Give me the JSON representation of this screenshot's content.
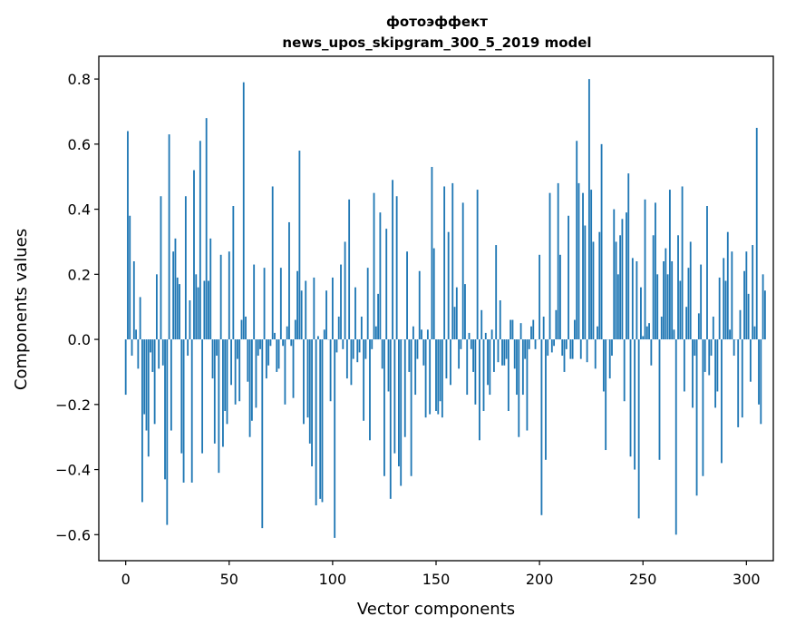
{
  "chart_data": {
    "type": "bar",
    "title_line1": "фотоэффект",
    "title_line2": "news_upos_skipgram_300_5_2019 model",
    "xlabel": "Vector components",
    "ylabel": "Components values",
    "xlim": [
      -13,
      313
    ],
    "ylim": [
      -0.68,
      0.87
    ],
    "x_ticks": [
      0,
      50,
      100,
      150,
      200,
      250,
      300
    ],
    "y_ticks": [
      -0.6,
      -0.4,
      -0.2,
      0.0,
      0.2,
      0.4,
      0.6,
      0.8
    ],
    "x_tick_labels": [
      "0",
      "50",
      "100",
      "150",
      "200",
      "250",
      "300"
    ],
    "y_tick_labels": [
      "−0.6",
      "−0.4",
      "−0.2",
      "0.0",
      "0.2",
      "0.4",
      "0.6",
      "0.8"
    ],
    "bar_color": "#1f77b4",
    "grid": false,
    "values": [
      -0.17,
      0.64,
      0.38,
      -0.05,
      0.24,
      0.03,
      -0.09,
      0.13,
      -0.5,
      -0.23,
      -0.28,
      -0.36,
      -0.04,
      -0.1,
      -0.26,
      0.2,
      -0.09,
      0.44,
      -0.08,
      -0.43,
      -0.57,
      0.63,
      -0.28,
      0.27,
      0.31,
      0.19,
      0.17,
      -0.35,
      -0.44,
      0.44,
      -0.05,
      0.12,
      -0.44,
      0.52,
      0.2,
      0.16,
      0.61,
      -0.35,
      0.18,
      0.68,
      0.18,
      0.31,
      -0.12,
      -0.32,
      -0.05,
      -0.41,
      0.26,
      -0.33,
      -0.22,
      -0.26,
      0.27,
      -0.14,
      0.41,
      -0.2,
      -0.06,
      -0.19,
      0.06,
      0.79,
      0.07,
      -0.13,
      -0.3,
      -0.25,
      0.23,
      -0.21,
      -0.05,
      -0.03,
      -0.58,
      0.22,
      -0.12,
      -0.08,
      -0.02,
      0.47,
      0.02,
      -0.1,
      -0.09,
      0.22,
      -0.02,
      -0.2,
      0.04,
      0.36,
      -0.02,
      -0.18,
      0.06,
      0.21,
      0.58,
      0.15,
      -0.26,
      0.18,
      -0.24,
      -0.32,
      -0.39,
      0.19,
      -0.51,
      0.01,
      -0.49,
      -0.5,
      0.03,
      0.15,
      0.0,
      -0.19,
      0.19,
      -0.61,
      -0.04,
      0.07,
      0.23,
      -0.03,
      0.3,
      -0.12,
      0.43,
      -0.14,
      -0.06,
      0.16,
      -0.07,
      -0.04,
      0.07,
      -0.25,
      -0.06,
      0.22,
      -0.31,
      -0.03,
      0.45,
      0.04,
      0.14,
      0.39,
      -0.09,
      -0.42,
      0.34,
      -0.16,
      -0.49,
      0.49,
      -0.35,
      0.44,
      -0.39,
      -0.45,
      0.0,
      -0.3,
      0.27,
      -0.1,
      -0.42,
      0.04,
      -0.17,
      -0.06,
      0.21,
      0.03,
      -0.08,
      -0.24,
      0.03,
      -0.23,
      0.53,
      0.28,
      -0.22,
      -0.23,
      -0.19,
      -0.24,
      0.47,
      -0.12,
      0.33,
      -0.14,
      0.48,
      0.1,
      0.16,
      -0.09,
      -0.03,
      0.42,
      0.17,
      -0.17,
      0.02,
      -0.03,
      -0.1,
      -0.2,
      0.46,
      -0.31,
      0.09,
      -0.22,
      0.02,
      -0.14,
      -0.17,
      0.03,
      -0.1,
      0.29,
      -0.07,
      0.12,
      -0.08,
      -0.08,
      -0.06,
      -0.22,
      0.06,
      0.06,
      -0.09,
      -0.17,
      -0.3,
      0.05,
      -0.17,
      -0.06,
      -0.28,
      -0.03,
      0.04,
      0.06,
      -0.03,
      0.0,
      0.26,
      -0.54,
      0.07,
      -0.37,
      -0.05,
      0.45,
      -0.04,
      -0.02,
      0.09,
      0.48,
      0.26,
      -0.05,
      -0.1,
      -0.03,
      0.38,
      -0.06,
      -0.06,
      0.06,
      0.61,
      0.48,
      -0.06,
      0.45,
      0.35,
      -0.07,
      0.8,
      0.46,
      0.3,
      -0.09,
      0.04,
      0.33,
      0.6,
      -0.16,
      -0.34,
      0.0,
      -0.12,
      -0.05,
      0.4,
      0.3,
      0.2,
      0.32,
      0.37,
      -0.19,
      0.39,
      0.51,
      -0.36,
      0.25,
      -0.4,
      0.24,
      -0.55,
      0.16,
      0.01,
      0.43,
      0.04,
      0.05,
      -0.08,
      0.32,
      0.42,
      0.2,
      -0.37,
      0.07,
      0.24,
      0.28,
      0.2,
      0.46,
      0.24,
      0.03,
      -0.6,
      0.32,
      0.18,
      0.47,
      -0.16,
      0.1,
      0.22,
      0.3,
      -0.21,
      -0.05,
      -0.48,
      0.08,
      0.23,
      -0.42,
      -0.1,
      0.41,
      -0.11,
      -0.05,
      0.07,
      -0.21,
      -0.16,
      0.19,
      -0.38,
      0.25,
      0.18,
      0.33,
      0.03,
      0.27,
      -0.05,
      0.0,
      -0.27,
      0.09,
      -0.24,
      0.21,
      0.27,
      0.14,
      -0.13,
      0.29,
      0.04,
      0.65,
      -0.2,
      -0.26,
      0.2,
      0.15
    ]
  }
}
